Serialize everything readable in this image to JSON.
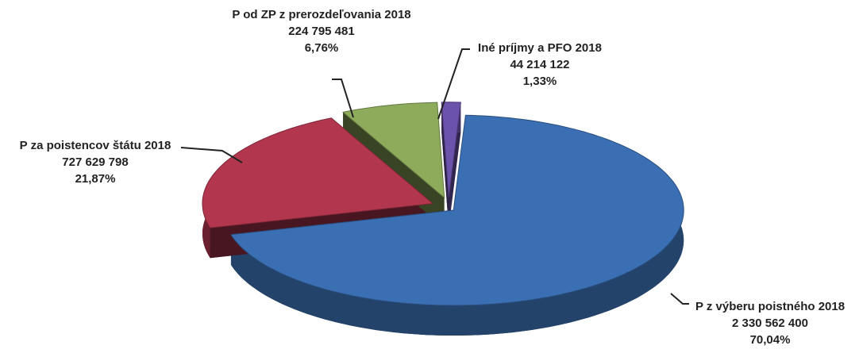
{
  "chart_data": {
    "type": "pie",
    "categories": [
      "P z výberu poistného 2018",
      "P za poistencov štátu 2018",
      "P od ZP z prerozdeľovania 2018",
      "Iné príjmy a PFO 2018"
    ],
    "values": [
      2330562400,
      727629798,
      224795481,
      44214122
    ],
    "value_labels": [
      "2 330 562 400",
      "727 629 798",
      "224 795 481",
      "44 214 122"
    ],
    "percentages": [
      70.04,
      21.87,
      6.76,
      1.33
    ],
    "percentage_labels": [
      "70,04%",
      "21,87%",
      "6,76%",
      "1,33%"
    ],
    "colors": [
      "#3b6fb3",
      "#b3364f",
      "#8eab5c",
      "#6b52ab"
    ]
  }
}
